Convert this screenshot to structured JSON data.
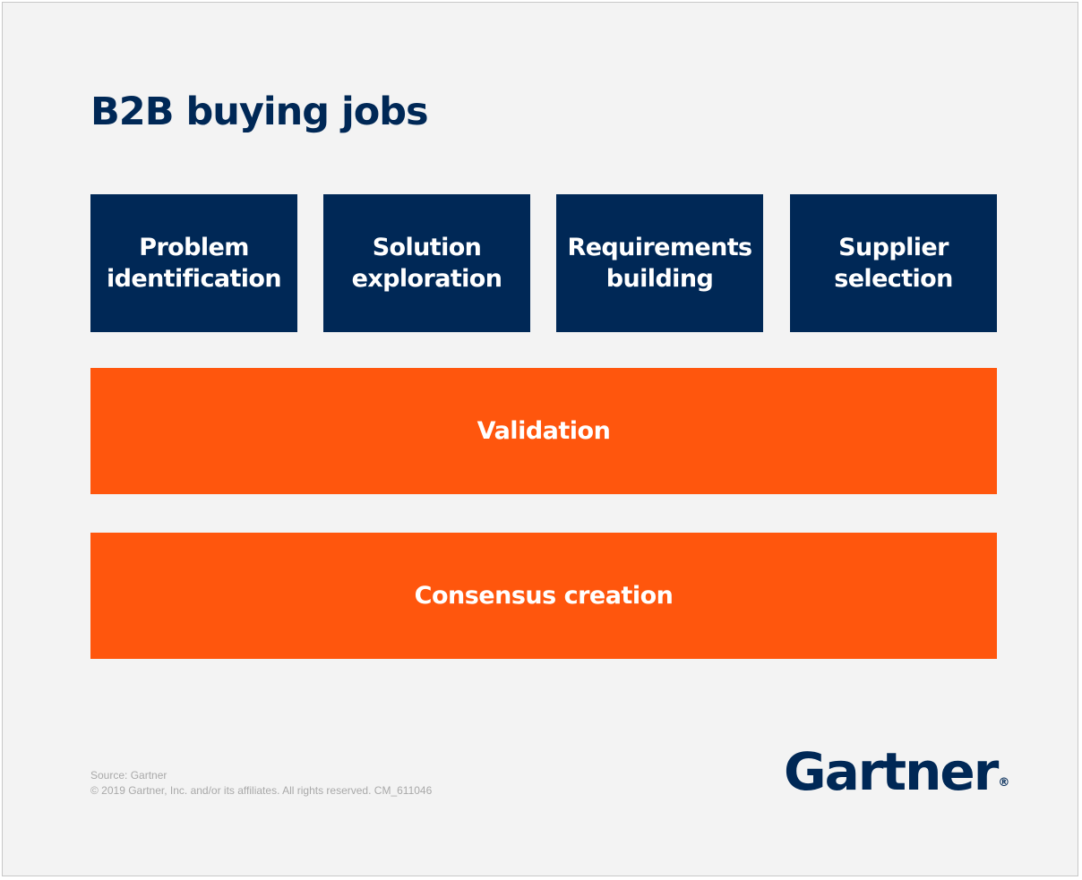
{
  "title": "B2B buying jobs",
  "buying_jobs": [
    {
      "label": "Problem\nidentification"
    },
    {
      "label": "Solution\nexploration"
    },
    {
      "label": "Requirements\nbuilding"
    },
    {
      "label": "Supplier\nselection"
    }
  ],
  "bands": {
    "validation": "Validation",
    "consensus": "Consensus creation"
  },
  "footer": {
    "source": "Source: Gartner",
    "copyright": "© 2019 Gartner, Inc. and/or its affiliates. All rights reserved. CM_611046"
  },
  "logo": {
    "name": "Gartner",
    "mark": "®"
  },
  "colors": {
    "navy": "#002856",
    "orange": "#ff560d",
    "background": "#f3f3f3"
  }
}
